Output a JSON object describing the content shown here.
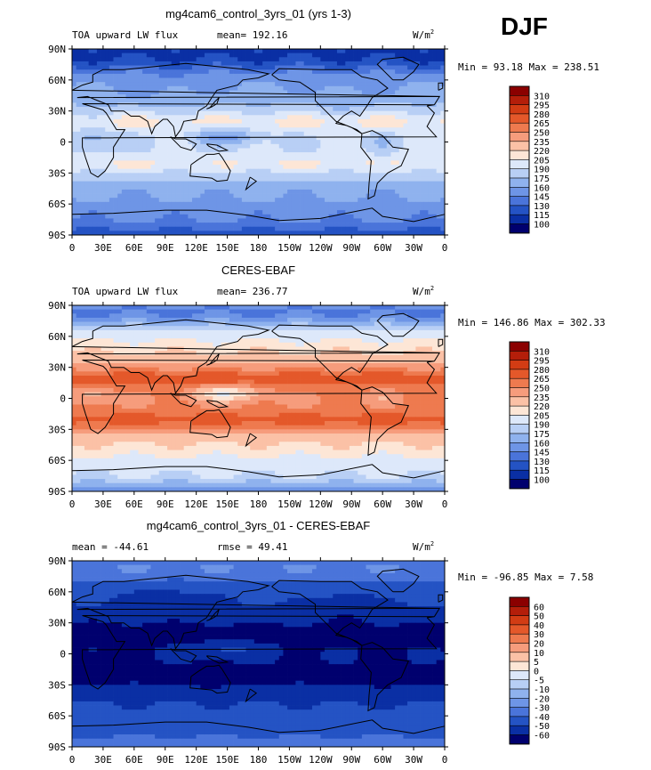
{
  "figure": {
    "season": "DJF"
  },
  "chart_data": [
    {
      "type": "heatmap",
      "title": "mg4cam6_control_3yrs_01 (yrs 1-3)",
      "left_label": "TOA upward LW flux",
      "center_label": "mean= 192.16",
      "units": "W/m",
      "units_sup": "2",
      "stats": "Min =  93.18 Max = 238.51",
      "colormap": "warm",
      "x_ticks": [
        "0",
        "30E",
        "60E",
        "90E",
        "120E",
        "150E",
        "180",
        "150W",
        "120W",
        "90W",
        "60W",
        "30W",
        "0"
      ],
      "y_ticks": [
        "90N",
        "60N",
        "30N",
        "0",
        "30S",
        "60S",
        "90S"
      ],
      "colorbar_levels": [
        "310",
        "295",
        "280",
        "265",
        "250",
        "235",
        "220",
        "205",
        "190",
        "175",
        "160",
        "145",
        "130",
        "115",
        "100"
      ],
      "colorbar_colors": [
        "#8b0000",
        "#b41e0a",
        "#d23c14",
        "#e4582a",
        "#ee7a4f",
        "#f69c7c",
        "#fbc1a6",
        "#fde6d6",
        "#dde8fa",
        "#b8cff5",
        "#8fb2ee",
        "#6e95e6",
        "#4a74da",
        "#2453c4",
        "#0a2fa4",
        "#00006e"
      ],
      "field": {
        "name": "olr_model",
        "min": 93.18,
        "max": 238.51
      }
    },
    {
      "type": "heatmap",
      "title": "CERES-EBAF",
      "left_label": "TOA upward LW flux",
      "center_label": "mean= 236.77",
      "units": "W/m",
      "units_sup": "2",
      "stats": "Min = 146.86 Max = 302.33",
      "colormap": "warm",
      "x_ticks": [
        "0",
        "30E",
        "60E",
        "90E",
        "120E",
        "150E",
        "180",
        "150W",
        "120W",
        "90W",
        "60W",
        "30W",
        "0"
      ],
      "y_ticks": [
        "90N",
        "60N",
        "30N",
        "0",
        "30S",
        "60S",
        "90S"
      ],
      "colorbar_levels": [
        "310",
        "295",
        "280",
        "265",
        "250",
        "235",
        "220",
        "205",
        "190",
        "175",
        "160",
        "145",
        "130",
        "115",
        "100"
      ],
      "colorbar_colors": [
        "#8b0000",
        "#b41e0a",
        "#d23c14",
        "#e4582a",
        "#ee7a4f",
        "#f69c7c",
        "#fbc1a6",
        "#fde6d6",
        "#dde8fa",
        "#b8cff5",
        "#8fb2ee",
        "#6e95e6",
        "#4a74da",
        "#2453c4",
        "#0a2fa4",
        "#00006e"
      ],
      "field": {
        "name": "olr_obs",
        "min": 146.86,
        "max": 302.33
      }
    },
    {
      "type": "heatmap",
      "title": "mg4cam6_control_3yrs_01 - CERES-EBAF",
      "left_label": "mean = -44.61",
      "center_label": "rmse =  49.41",
      "units": "W/m",
      "units_sup": "2",
      "stats": "Min = -96.85 Max =    7.58",
      "colormap": "diff",
      "x_ticks": [
        "0",
        "30E",
        "60E",
        "90E",
        "120E",
        "150E",
        "180",
        "150W",
        "120W",
        "90W",
        "60W",
        "30W",
        "0"
      ],
      "y_ticks": [
        "90N",
        "60N",
        "30N",
        "0",
        "30S",
        "60S",
        "90S"
      ],
      "colorbar_levels": [
        "60",
        "50",
        "40",
        "30",
        "20",
        "10",
        "5",
        "0",
        "-5",
        "-10",
        "-20",
        "-30",
        "-40",
        "-50",
        "-60"
      ],
      "colorbar_colors": [
        "#8b0000",
        "#b41e0a",
        "#d23c14",
        "#e4582a",
        "#ee7a4f",
        "#f69c7c",
        "#fbc1a6",
        "#fde6d6",
        "#dde8fa",
        "#b8cff5",
        "#8fb2ee",
        "#6e95e6",
        "#4a74da",
        "#2453c4",
        "#0a2fa4",
        "#00006e"
      ],
      "field": {
        "name": "olr_diff",
        "min": -96.85,
        "max": 7.58
      }
    }
  ]
}
